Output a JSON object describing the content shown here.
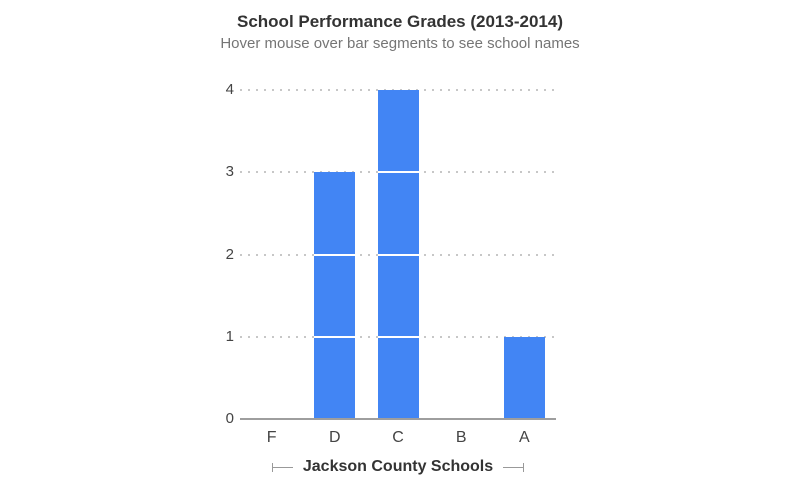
{
  "chart_data": {
    "type": "bar",
    "stacked_unit_segments": true,
    "title": "School Performance Grades (2013-2014)",
    "subtitle": "Hover mouse over bar segments to see school names",
    "xlabel": "Jackson County Schools",
    "ylabel": "",
    "categories": [
      "F",
      "D",
      "C",
      "B",
      "A"
    ],
    "values": [
      0,
      3,
      4,
      0,
      1
    ],
    "ylim": [
      0,
      4
    ],
    "yticks": [
      0,
      1,
      2,
      3,
      4
    ],
    "legend": "none",
    "grid": "horizontal-dotted",
    "colors": {
      "bar": "#4285F4",
      "segment_divider": "#FFFFFF",
      "gridline": "#C7C7C7",
      "axis_line": "#9E9E9E",
      "tick_label": "#444444",
      "title": "#333333",
      "subtitle": "#757575",
      "axis_span_bracket": "#999999",
      "x_axis_title": "#333333"
    }
  }
}
